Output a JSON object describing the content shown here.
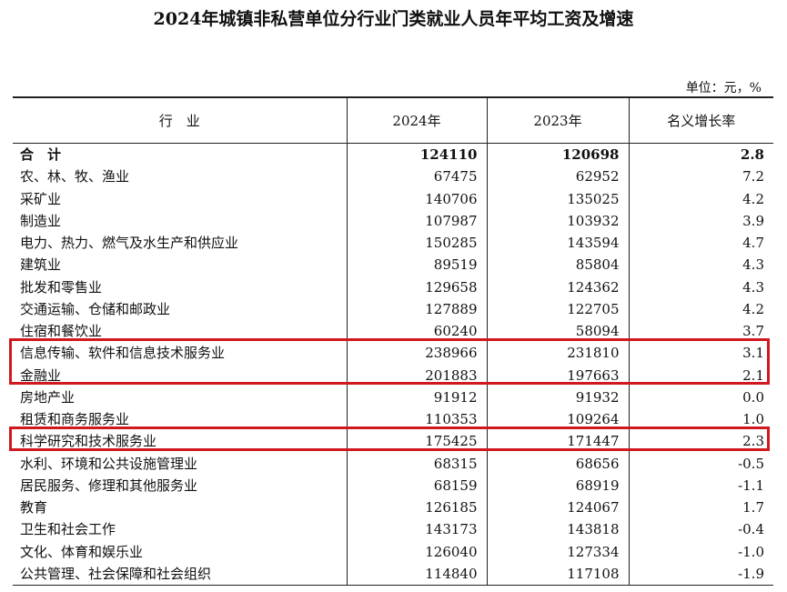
{
  "title": "2024年城镇非私营单位分行业门类就业人员年平均工资及增速",
  "unit": "单位：元，%",
  "table": {
    "header": [
      "行　业",
      "2024年",
      "2023年",
      "名义增长率"
    ],
    "rows": [
      [
        "合　计",
        "124110",
        "120698",
        "2.8"
      ],
      [
        "农、林、牧、渔业",
        "67475",
        "62952",
        "7.2"
      ],
      [
        "采矿业",
        "140706",
        "135025",
        "4.2"
      ],
      [
        "制造业",
        "107987",
        "103932",
        "3.9"
      ],
      [
        "电力、热力、燃气及水生产和供应业",
        "150285",
        "143594",
        "4.7"
      ],
      [
        "建筑业",
        "89519",
        "85804",
        "4.3"
      ],
      [
        "批发和零售业",
        "129658",
        "124362",
        "4.3"
      ],
      [
        "交通运输、仓储和邮政业",
        "127889",
        "122705",
        "4.2"
      ],
      [
        "住宿和餐饮业",
        "60240",
        "58094",
        "3.7"
      ],
      [
        "信息传输、软件和信息技术服务业",
        "238966",
        "231810",
        "3.1"
      ],
      [
        "金融业",
        "201883",
        "197663",
        "2.1"
      ],
      [
        "房地产业",
        "91912",
        "91932",
        "0.0"
      ],
      [
        "租赁和商务服务业",
        "110353",
        "109264",
        "1.0"
      ],
      [
        "科学研究和技术服务业",
        "175425",
        "171447",
        "2.3"
      ],
      [
        "水利、环境和公共设施管理业",
        "68315",
        "68656",
        "-0.5"
      ],
      [
        "居民服务、修理和其他服务业",
        "68159",
        "68919",
        "-1.1"
      ],
      [
        "教育",
        "126185",
        "124067",
        "1.7"
      ],
      [
        "卫生和社会工作",
        "143173",
        "143818",
        "-0.4"
      ],
      [
        "文化、体育和娱乐业",
        "126040",
        "127334",
        "-1.0"
      ],
      [
        "公共管理、社会保障和社会组织",
        "114840",
        "117108",
        "-1.9"
      ]
    ]
  }
}
